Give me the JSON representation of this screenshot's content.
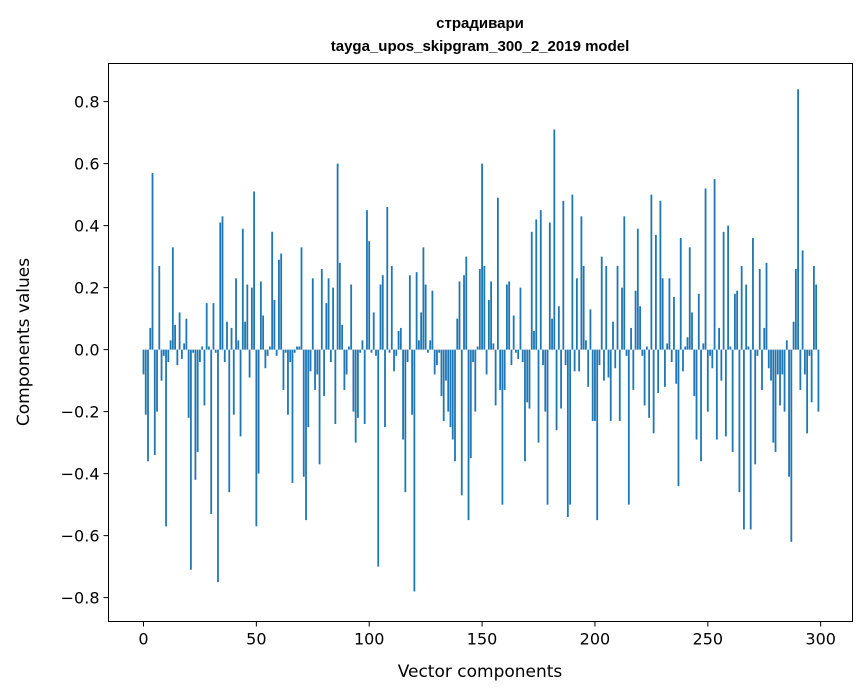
{
  "chart_data": {
    "type": "bar",
    "title": [
      "страдивари",
      "tayga_upos_skipgram_300_2_2019 model"
    ],
    "xlabel": "Vector components",
    "ylabel": "Components values",
    "xlim": [
      -15.5,
      314.1
    ],
    "ylim": [
      -0.877,
      0.923
    ],
    "xticks": [
      0,
      50,
      100,
      150,
      200,
      250,
      300
    ],
    "yticks": [
      -0.8,
      -0.6,
      -0.4,
      -0.2,
      0.0,
      0.2,
      0.4,
      0.6,
      0.8
    ],
    "ytick_labels": [
      "−0.8",
      "−0.6",
      "−0.4",
      "−0.2",
      "0.0",
      "0.2",
      "0.4",
      "0.6",
      "0.8"
    ],
    "grid": false,
    "color": "#1f77b4",
    "values": [
      -0.08,
      -0.21,
      -0.36,
      0.07,
      0.57,
      -0.34,
      -0.2,
      0.27,
      -0.1,
      -0.02,
      -0.57,
      -0.04,
      0.03,
      0.33,
      0.08,
      -0.05,
      0.12,
      -0.03,
      0.02,
      0.1,
      -0.22,
      -0.71,
      -0.01,
      -0.42,
      -0.33,
      -0.04,
      0.01,
      -0.18,
      0.15,
      0.01,
      -0.53,
      0.15,
      -0.01,
      -0.75,
      0.41,
      0.43,
      -0.04,
      0.09,
      -0.46,
      0.07,
      -0.21,
      0.23,
      0.03,
      -0.28,
      0.39,
      0.09,
      0.21,
      -0.09,
      0.2,
      0.51,
      -0.57,
      -0.4,
      0.22,
      0.11,
      -0.06,
      -0.02,
      0.01,
      0.38,
      0.16,
      -0.02,
      0.29,
      0.31,
      -0.13,
      -0.01,
      -0.21,
      -0.04,
      -0.43,
      -0.01,
      0.01,
      0.01,
      0.33,
      -0.41,
      -0.55,
      -0.25,
      -0.07,
      0.23,
      -0.13,
      -0.08,
      -0.37,
      0.26,
      -0.15,
      0.15,
      0.23,
      -0.04,
      0.2,
      -0.24,
      0.6,
      0.28,
      0.08,
      -0.13,
      -0.08,
      0.01,
      0.21,
      -0.2,
      -0.3,
      -0.22,
      -0.01,
      0.03,
      -0.24,
      0.45,
      0.35,
      -0.01,
      0.12,
      -0.02,
      -0.7,
      0.21,
      0.24,
      -0.25,
      0.46,
      -0.01,
      0.27,
      -0.07,
      -0.02,
      0.06,
      0.07,
      -0.29,
      -0.46,
      -0.04,
      0.24,
      -0.21,
      -0.78,
      0.25,
      0.03,
      0.12,
      0.33,
      0.21,
      -0.01,
      0.03,
      0.19,
      -0.08,
      -0.05,
      -0.01,
      -0.15,
      -0.23,
      -0.1,
      -0.2,
      -0.25,
      -0.29,
      -0.36,
      0.1,
      0.22,
      -0.47,
      0.24,
      0.3,
      -0.55,
      -0.35,
      -0.04,
      -0.2,
      0.01,
      0.26,
      0.6,
      0.27,
      -0.08,
      0.16,
      0.22,
      0.02,
      -0.18,
      0.49,
      -0.13,
      -0.5,
      -0.13,
      0.21,
      0.22,
      -0.05,
      0.11,
      -0.01,
      -0.03,
      0.2,
      -0.04,
      -0.36,
      -0.17,
      -0.19,
      0.38,
      0.06,
      0.42,
      -0.3,
      0.45,
      -0.05,
      -0.2,
      -0.5,
      0.41,
      0.1,
      0.71,
      -0.26,
      0.14,
      -0.19,
      0.48,
      -0.05,
      -0.54,
      -0.5,
      0.5,
      -0.07,
      0.23,
      -0.07,
      0.43,
      0.27,
      0.03,
      -0.12,
      0.13,
      -0.23,
      -0.23,
      -0.55,
      -0.05,
      0.3,
      -0.1,
      0.27,
      -0.09,
      -0.23,
      0.09,
      -0.06,
      0.27,
      -0.23,
      0.2,
      0.43,
      -0.02,
      -0.5,
      0.07,
      -0.13,
      0.19,
      0.39,
      0.14,
      -0.02,
      -0.18,
      0.01,
      -0.22,
      0.5,
      -0.27,
      0.37,
      -0.14,
      0.48,
      0.23,
      -0.12,
      0.02,
      0.23,
      -0.04,
      0.17,
      -0.11,
      -0.44,
      0.36,
      -0.07,
      0.01,
      0.04,
      0.33,
      0.12,
      -0.15,
      -0.29,
      0.18,
      -0.36,
      0.02,
      0.52,
      -0.2,
      -0.02,
      -0.06,
      0.55,
      -0.29,
      0.07,
      -0.1,
      0.38,
      -0.28,
      0.4,
      0.01,
      -0.33,
      0.18,
      0.19,
      -0.46,
      0.27,
      -0.58,
      0.21,
      0.01,
      -0.58,
      0.36,
      -0.37,
      -0.02,
      0.26,
      -0.13,
      0.07,
      0.28,
      -0.06,
      -0.1,
      -0.3,
      -0.33,
      -0.08,
      -0.18,
      -0.08,
      -0.2,
      0.03,
      -0.41,
      -0.62,
      0.09,
      0.26,
      0.84,
      -0.13,
      0.32,
      -0.08,
      -0.27,
      -0.02,
      -0.17,
      0.27,
      0.21,
      -0.2
    ]
  }
}
